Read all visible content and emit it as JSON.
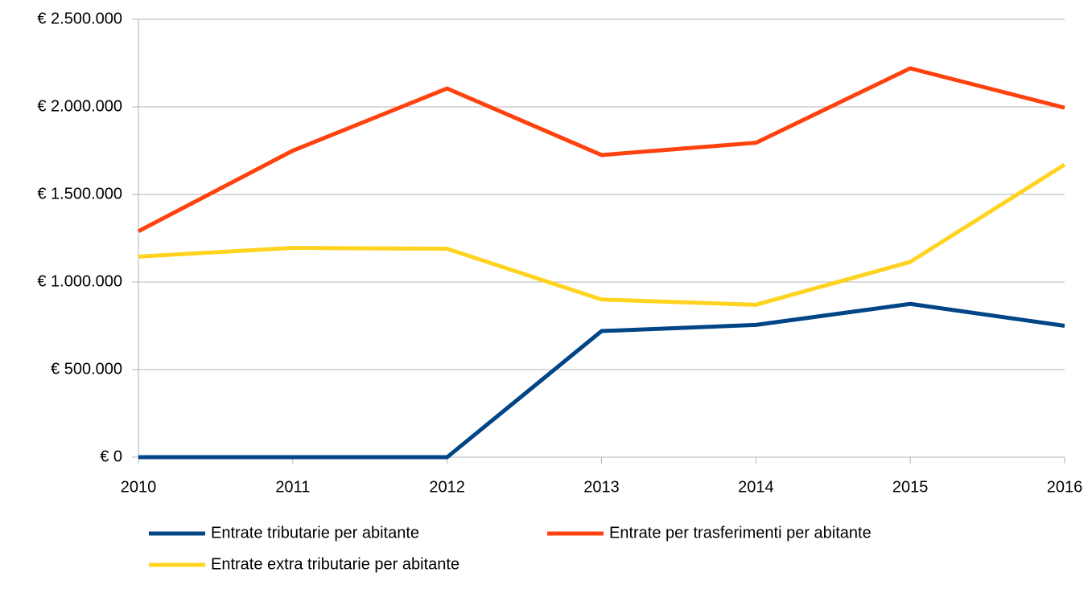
{
  "chart_data": {
    "type": "line",
    "categories": [
      "2010",
      "2011",
      "2012",
      "2013",
      "2014",
      "2015",
      "2016"
    ],
    "series": [
      {
        "name": "Entrate tributarie per abitante",
        "color": "#004586",
        "values": [
          0,
          0,
          0,
          720000,
          755000,
          875000,
          750000
        ]
      },
      {
        "name": "Entrate per trasferimenti per abitante",
        "color": "#ff420e",
        "values": [
          1290000,
          1750000,
          2105000,
          1725000,
          1795000,
          2220000,
          1995000
        ]
      },
      {
        "name": "Entrate extra tributarie per abitante",
        "color": "#ffd320",
        "values": [
          1145000,
          1195000,
          1190000,
          900000,
          870000,
          1115000,
          1670000
        ]
      }
    ],
    "ylim": [
      0,
      2500000
    ],
    "yticks": [
      {
        "value": 0,
        "label": "€ 0"
      },
      {
        "value": 500000,
        "label": "€ 500.000"
      },
      {
        "value": 1000000,
        "label": "€ 1.000.000"
      },
      {
        "value": 1500000,
        "label": "€ 1.500.000"
      },
      {
        "value": 2000000,
        "label": "€ 2.000.000"
      },
      {
        "value": 2500000,
        "label": "€ 2.500.000"
      }
    ],
    "grid": true,
    "legend": "bottom"
  }
}
